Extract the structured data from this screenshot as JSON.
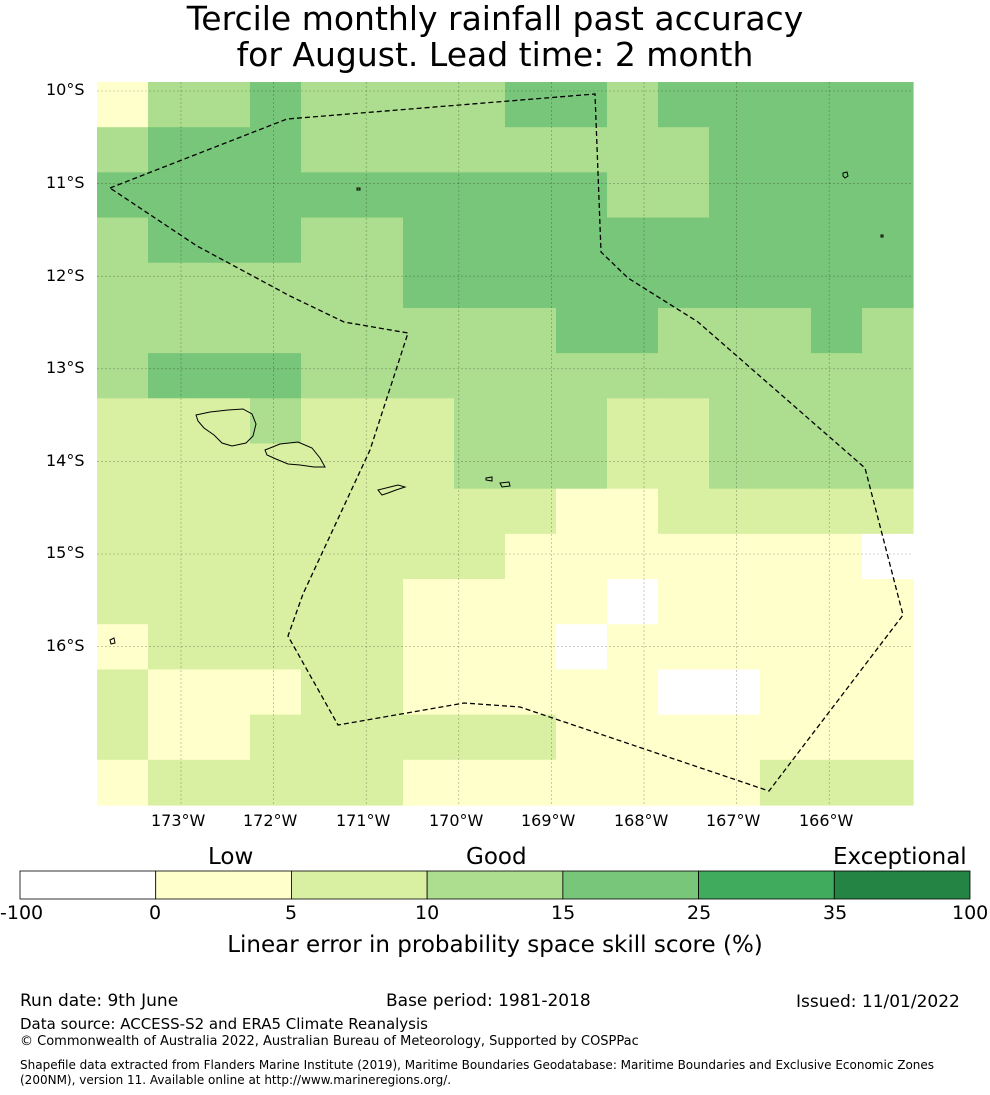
{
  "title": {
    "line1": "Tercile monthly rainfall past accuracy",
    "line2": "for August. Lead time: 2 month"
  },
  "map": {
    "lat_labels": [
      "10°S",
      "11°S",
      "12°S",
      "13°S",
      "14°S",
      "15°S",
      "16°S"
    ],
    "lon_labels": [
      "173°W",
      "172°W",
      "171°W",
      "170°W",
      "169°W",
      "168°W",
      "167°W",
      "166°W"
    ],
    "gridlines": true,
    "boundary_style": "dashed",
    "skill_grid": [
      [
        1,
        3,
        3,
        4,
        3,
        3,
        3,
        3,
        4,
        4,
        3,
        4,
        4,
        4,
        4,
        4
      ],
      [
        3,
        4,
        4,
        4,
        3,
        3,
        3,
        3,
        3,
        3,
        3,
        3,
        4,
        4,
        4,
        4
      ],
      [
        4,
        4,
        4,
        4,
        4,
        4,
        4,
        4,
        4,
        4,
        3,
        3,
        4,
        4,
        4,
        4
      ],
      [
        3,
        4,
        4,
        4,
        3,
        3,
        4,
        4,
        4,
        4,
        4,
        4,
        4,
        4,
        4,
        4
      ],
      [
        3,
        3,
        3,
        3,
        3,
        3,
        4,
        4,
        4,
        4,
        4,
        4,
        4,
        4,
        4,
        4
      ],
      [
        3,
        3,
        3,
        3,
        3,
        3,
        3,
        3,
        3,
        4,
        4,
        3,
        3,
        3,
        4,
        3
      ],
      [
        3,
        4,
        4,
        4,
        3,
        3,
        3,
        3,
        3,
        3,
        3,
        3,
        3,
        3,
        3,
        3
      ],
      [
        2,
        2,
        2,
        3,
        2,
        2,
        2,
        3,
        3,
        3,
        2,
        2,
        3,
        3,
        3,
        3
      ],
      [
        2,
        2,
        2,
        2,
        2,
        2,
        2,
        3,
        3,
        3,
        2,
        2,
        3,
        3,
        3,
        3
      ],
      [
        2,
        2,
        2,
        2,
        2,
        2,
        2,
        2,
        2,
        1,
        1,
        2,
        2,
        2,
        2,
        2
      ],
      [
        2,
        2,
        2,
        2,
        2,
        2,
        2,
        2,
        1,
        1,
        1,
        1,
        1,
        1,
        1,
        0
      ],
      [
        2,
        2,
        2,
        2,
        2,
        2,
        1,
        1,
        1,
        1,
        0,
        1,
        1,
        1,
        1,
        1
      ],
      [
        1,
        2,
        2,
        2,
        2,
        2,
        1,
        1,
        1,
        0,
        1,
        1,
        1,
        1,
        1,
        1
      ],
      [
        2,
        1,
        1,
        1,
        2,
        2,
        1,
        1,
        1,
        1,
        1,
        0,
        0,
        1,
        1,
        1
      ],
      [
        2,
        1,
        1,
        2,
        2,
        2,
        2,
        2,
        2,
        1,
        1,
        1,
        1,
        1,
        1,
        1
      ],
      [
        1,
        2,
        2,
        2,
        2,
        2,
        1,
        1,
        1,
        1,
        1,
        1,
        1,
        2,
        2,
        2
      ]
    ]
  },
  "colorbar": {
    "category_labels": [
      "Low",
      "Good",
      "Exceptional"
    ],
    "tick_labels": [
      "-100",
      "0",
      "5",
      "10",
      "15",
      "25",
      "35",
      "100"
    ],
    "bins": [
      {
        "min": -100,
        "max": 0,
        "color": "#ffffff"
      },
      {
        "min": 0,
        "max": 5,
        "color": "#ffffcc"
      },
      {
        "min": 5,
        "max": 10,
        "color": "#d9f0a3"
      },
      {
        "min": 10,
        "max": 15,
        "color": "#addd8e"
      },
      {
        "min": 15,
        "max": 25,
        "color": "#78c679"
      },
      {
        "min": 25,
        "max": 35,
        "color": "#41ab5d"
      },
      {
        "min": 35,
        "max": 100,
        "color": "#238443"
      }
    ],
    "title": "Linear error in probability space skill score (%)"
  },
  "footer": {
    "run_date": "Run date: 9th June",
    "base_period": "Base period: 1981-2018",
    "issued": "Issued: 11/01/2022",
    "data_source": "Data source: ACCESS-S2 and ERA5 Climate Reanalysis",
    "copyright": "© Commonwealth of Australia 2022, Australian Bureau of Meteorology, Supported by COSPPac",
    "shapefile_line1": "Shapefile data extracted from Flanders Marine Institute (2019), Maritime Boundaries Geodatabase: Maritime Boundaries and Exclusive Economic Zones",
    "shapefile_line2": "(200NM), version 11. Available online at http://www.marineregions.org/."
  }
}
